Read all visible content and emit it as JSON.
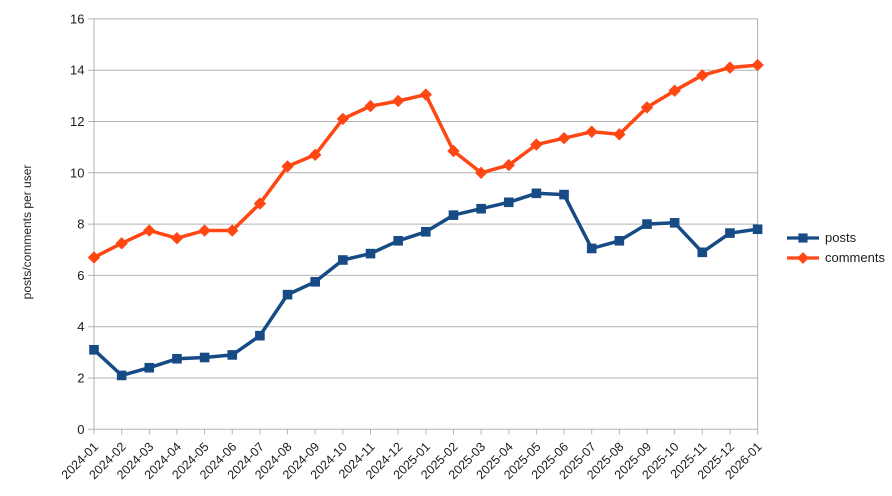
{
  "chart_data": {
    "type": "line",
    "title": "",
    "xlabel": "",
    "ylabel": "posts/comments per user",
    "ylim": [
      0,
      16
    ],
    "ytick_step": 2,
    "grid": "horizontal",
    "legend_position": "right",
    "x_tick_rotation_deg": 45,
    "categories": [
      "2024-01",
      "2024-02",
      "2024-03",
      "2024-04",
      "2024-05",
      "2024-06",
      "2024-07",
      "2024-08",
      "2024-09",
      "2024-10",
      "2024-11",
      "2024-12",
      "2025-01",
      "2025-02",
      "2025-03",
      "2025-04",
      "2025-05",
      "2025-06",
      "2025-07",
      "2025-08",
      "2025-09",
      "2025-10",
      "2025-11",
      "2025-12",
      "2026-01"
    ],
    "series": [
      {
        "name": "posts",
        "color": "#164b85",
        "marker": "square",
        "values": [
          3.1,
          2.1,
          2.4,
          2.75,
          2.8,
          2.9,
          3.65,
          5.25,
          5.75,
          6.6,
          6.85,
          7.35,
          7.7,
          8.35,
          8.6,
          8.85,
          9.2,
          9.15,
          7.05,
          7.35,
          8.0,
          8.05,
          6.9,
          7.65,
          7.8
        ]
      },
      {
        "name": "comments",
        "color": "#ff4713",
        "marker": "diamond",
        "values": [
          6.7,
          7.25,
          7.75,
          7.45,
          7.75,
          7.75,
          8.8,
          10.25,
          10.7,
          12.1,
          12.6,
          12.8,
          13.05,
          10.85,
          10.0,
          10.3,
          11.1,
          11.35,
          11.6,
          11.5,
          12.55,
          13.2,
          13.8,
          14.1,
          14.2
        ]
      }
    ],
    "colors": {
      "grid": "#b3b3b3",
      "axis": "#b3b3b3",
      "tick_label": "#1c1c1c",
      "background": "#ffffff"
    }
  }
}
